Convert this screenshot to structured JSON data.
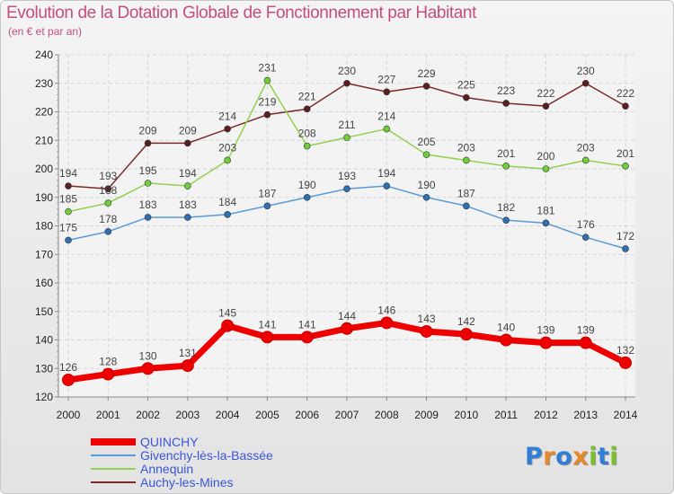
{
  "title": "Evolution de la Dotation Globale de Fonctionnement par Habitant",
  "subtitle": "(en € et par an)",
  "logo": {
    "text": "Proxiti",
    "letters": [
      "P",
      "r",
      "o",
      "x",
      "i",
      "t",
      "i"
    ],
    "letter_colors": [
      "#2f7fd6",
      "#e8862a",
      "#2f7fd6",
      "#e8862a",
      "#7cbf2c",
      "#2f7fd6",
      "#7cbf2c"
    ]
  },
  "chart_data": {
    "type": "line",
    "title": "Evolution de la Dotation Globale de Fonctionnement par Habitant",
    "subtitle": "(en € et par an)",
    "xlabel": "",
    "ylabel": "",
    "x": [
      "2000",
      "2001",
      "2002",
      "2003",
      "2004",
      "2005",
      "2006",
      "2007",
      "2008",
      "2009",
      "2010",
      "2011",
      "2012",
      "2013",
      "2014"
    ],
    "ylim": [
      120,
      240
    ],
    "yticks": [
      "120",
      "130",
      "140",
      "150",
      "160",
      "170",
      "180",
      "190",
      "200",
      "210",
      "220",
      "230",
      "240"
    ],
    "grid": true,
    "legend_position": "bottom-left",
    "series": [
      {
        "name": "QUINCHY",
        "color": "#ee0000",
        "marker_color": "#ee0000",
        "emphasis": "bold",
        "values": [
          126,
          128,
          130,
          131,
          145,
          141,
          141,
          144,
          146,
          143,
          142,
          140,
          139,
          139,
          132
        ]
      },
      {
        "name": "Givenchy-lès-la-Bassée",
        "color": "#5b9bd5",
        "marker_color": "#2f6fb3",
        "emphasis": "normal",
        "values": [
          175,
          178,
          183,
          183,
          184,
          187,
          190,
          193,
          194,
          190,
          187,
          182,
          181,
          176,
          172
        ]
      },
      {
        "name": "Annequin",
        "color": "#92d050",
        "marker_color": "#6fcf3a",
        "emphasis": "normal",
        "values": [
          185,
          188,
          195,
          194,
          203,
          231,
          208,
          211,
          214,
          205,
          203,
          201,
          200,
          203,
          201
        ]
      },
      {
        "name": "Auchy-les-Mines",
        "color": "#7a2a2a",
        "marker_color": "#5a1e1e",
        "emphasis": "normal",
        "values": [
          194,
          193,
          209,
          209,
          214,
          219,
          221,
          230,
          227,
          229,
          225,
          223,
          222,
          230,
          222
        ]
      }
    ]
  }
}
